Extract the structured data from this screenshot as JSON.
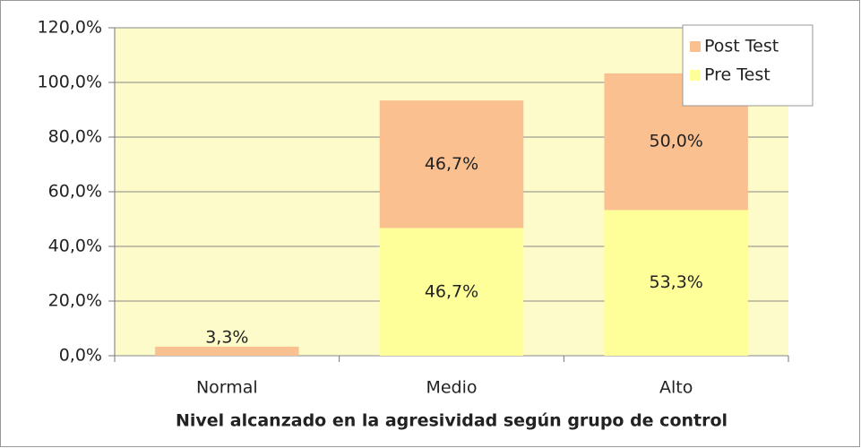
{
  "chart_data": {
    "type": "stacked_bar",
    "x_label": "Nivel alcanzado en la agresividad según grupo de control",
    "categories": [
      "Normal",
      "Medio",
      "Alto"
    ],
    "series": [
      {
        "name": "Pre Test",
        "color": "#ffff99",
        "values": [
          null,
          46.7,
          53.3
        ],
        "value_labels": [
          null,
          "46,7%",
          "53,3%"
        ]
      },
      {
        "name": "Post Test",
        "color": "#fac090",
        "values": [
          3.3,
          46.7,
          50.0
        ],
        "value_labels": [
          "3,3%",
          "46,7%",
          "50,0%"
        ]
      }
    ],
    "ylim": [
      0,
      120
    ],
    "yticks": [
      {
        "value": 0,
        "label": "0,0%"
      },
      {
        "value": 20,
        "label": "20,0%"
      },
      {
        "value": 40,
        "label": "40,0%"
      },
      {
        "value": 60,
        "label": "60,0%"
      },
      {
        "value": 80,
        "label": "80,0%"
      },
      {
        "value": 100,
        "label": "100,0%"
      },
      {
        "value": 120,
        "label": "120,0%"
      }
    ],
    "grid": true,
    "legend": "top-right"
  }
}
